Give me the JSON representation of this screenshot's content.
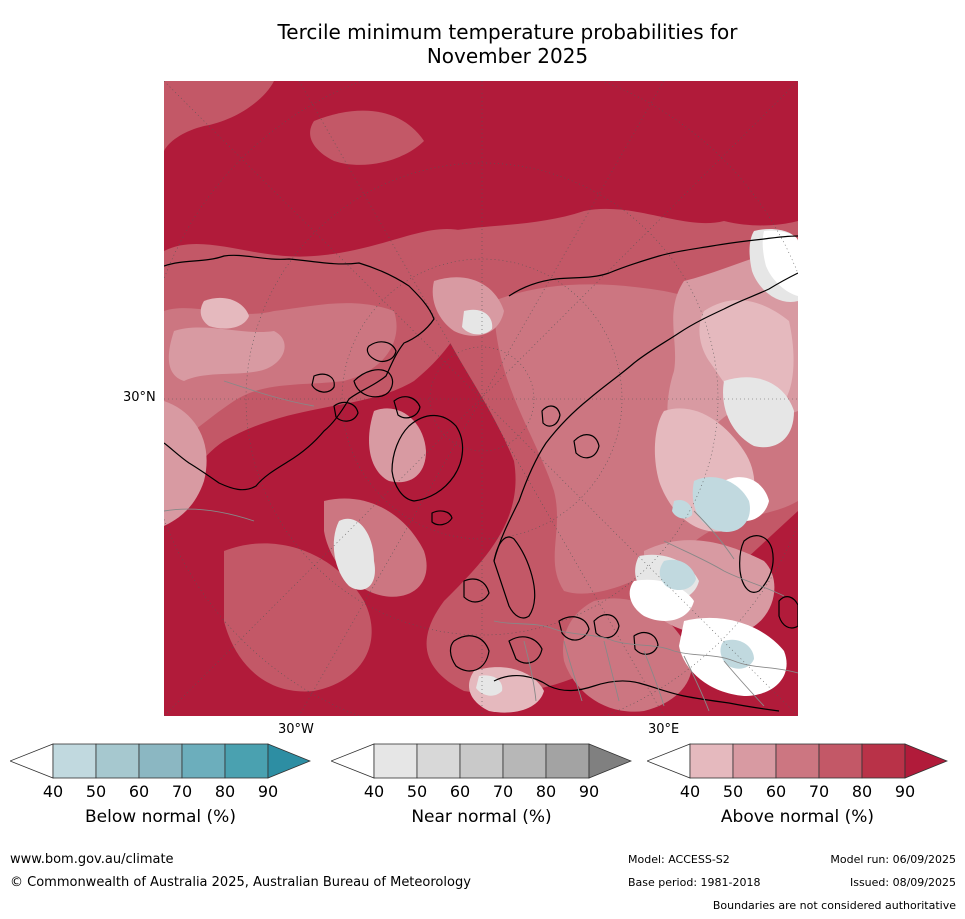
{
  "title": {
    "line1": "Tercile minimum temperature probabilities for",
    "line2": "November 2025"
  },
  "map": {
    "projection": "north polar stereographic",
    "lat_label": "30°N",
    "lon_labels": [
      "30°W",
      "30°E"
    ],
    "dominant_signal": "Above normal"
  },
  "colorbars": [
    {
      "id": "below",
      "label": "Below normal (%)",
      "ticks": [
        "40",
        "50",
        "60",
        "70",
        "80",
        "90"
      ],
      "colors": [
        "#ffffff",
        "#c1d9df",
        "#a6c8cf",
        "#8bb7c2",
        "#6caebc",
        "#4aa1b0",
        "#2d8ea3"
      ]
    },
    {
      "id": "near",
      "label": "Near normal (%)",
      "ticks": [
        "40",
        "50",
        "60",
        "70",
        "80",
        "90"
      ],
      "colors": [
        "#ffffff",
        "#e6e6e6",
        "#d8d8d8",
        "#c9c9c9",
        "#b7b7b7",
        "#a3a3a3",
        "#808080"
      ]
    },
    {
      "id": "above",
      "label": "Above normal (%)",
      "ticks": [
        "40",
        "50",
        "60",
        "70",
        "80",
        "90"
      ],
      "colors": [
        "#ffffff",
        "#e5b9be",
        "#d89aa2",
        "#cc7681",
        "#c35867",
        "#b93248",
        "#b11b3a"
      ]
    }
  ],
  "footer": {
    "url": "www.bom.gov.au/climate",
    "copyright": "© Commonwealth of Australia 2025, Australian Bureau of Meteorology",
    "model": "Model: ACCESS-S2",
    "base_period": "Base period: 1981-2018",
    "model_run": "Model run: 06/09/2025",
    "issued": "Issued: 08/09/2025",
    "boundaries": "Boundaries are not considered authoritative"
  }
}
